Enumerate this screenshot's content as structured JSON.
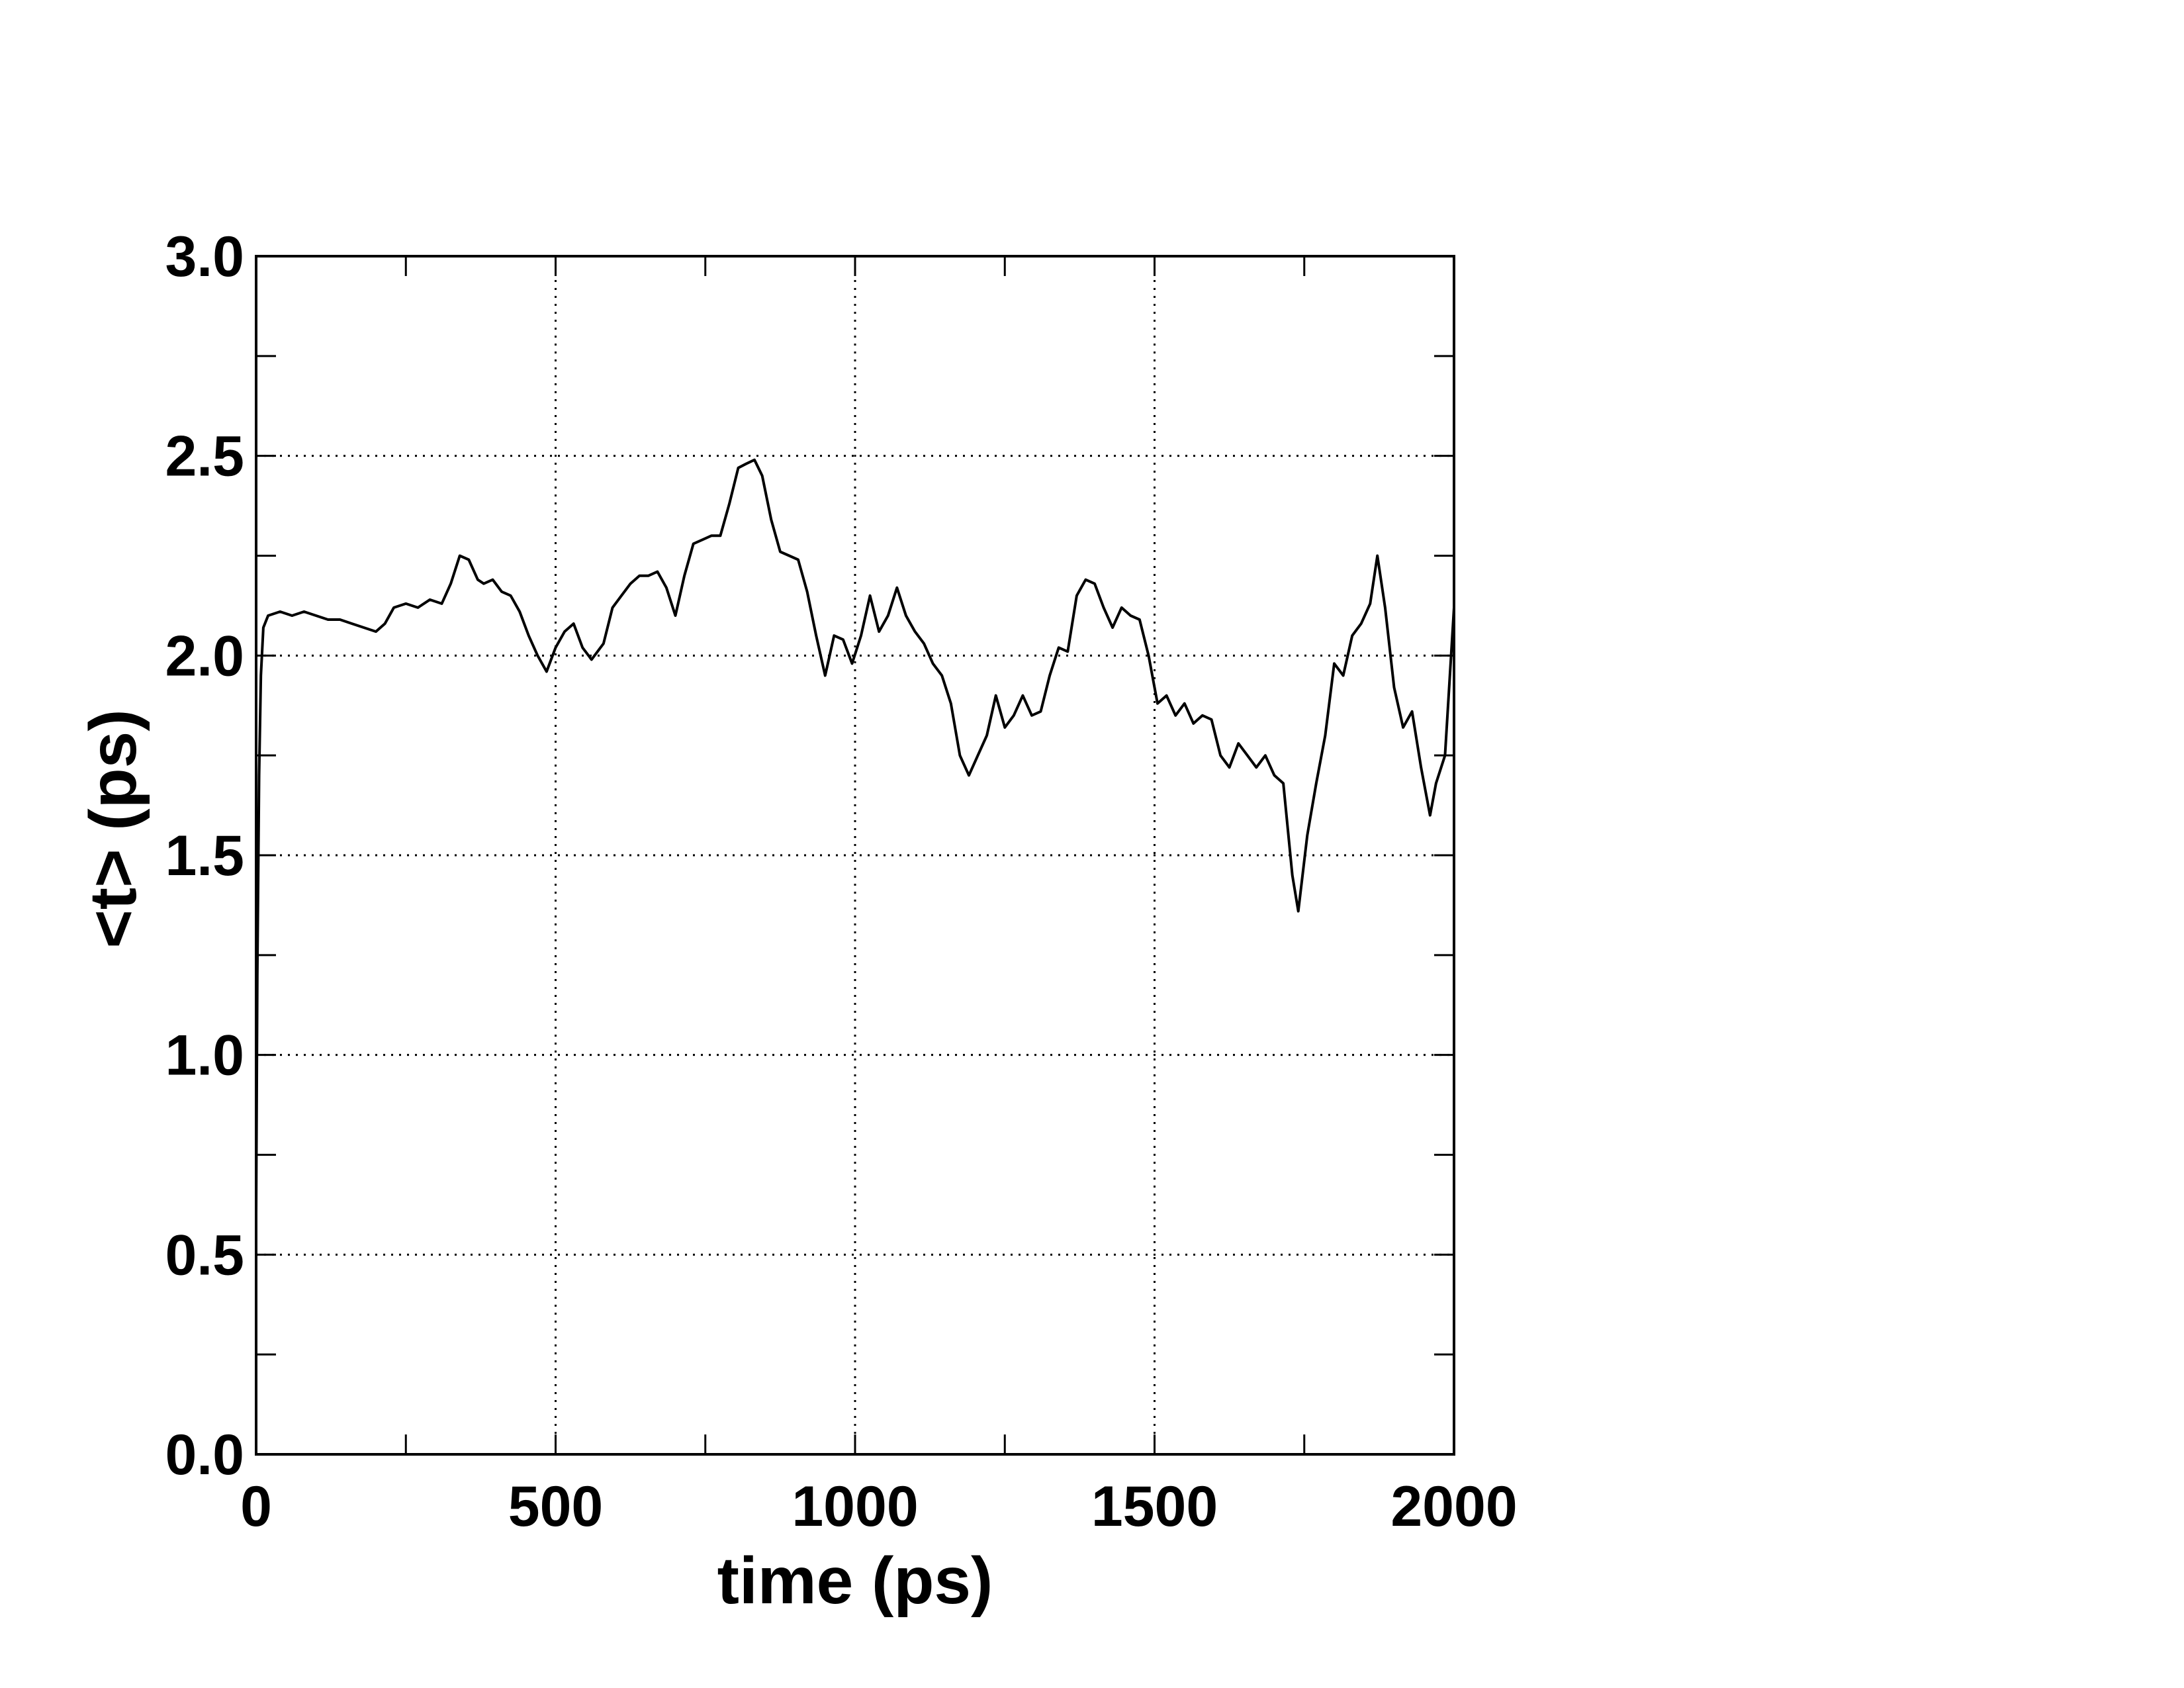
{
  "chart_data": {
    "type": "line",
    "title": "",
    "xlabel": "time (ps)",
    "ylabel": "<t> (ps)",
    "xlim": [
      0,
      2000
    ],
    "ylim": [
      0,
      3.0
    ],
    "x_ticks": [
      0,
      500,
      1000,
      1500,
      2000
    ],
    "x_tick_labels": [
      "0",
      "500",
      "1000",
      "1500",
      "2000"
    ],
    "x_minor_ticks": [
      250,
      750,
      1250,
      1750
    ],
    "y_ticks": [
      0,
      0.5,
      1.0,
      1.5,
      2.0,
      2.5,
      3.0
    ],
    "y_tick_labels": [
      "0.0",
      "0.5",
      "1.0",
      "1.5",
      "2.0",
      "2.5",
      "3.0"
    ],
    "y_minor_ticks": [
      0.25,
      0.75,
      1.25,
      1.75,
      2.25,
      2.75
    ],
    "grid": true,
    "series_color": "#000000",
    "series": [
      {
        "values": [
          [
            0,
            0.6
          ],
          [
            2,
            1.2
          ],
          [
            5,
            1.7
          ],
          [
            8,
            1.95
          ],
          [
            12,
            2.07
          ],
          [
            20,
            2.1
          ],
          [
            40,
            2.11
          ],
          [
            60,
            2.1
          ],
          [
            80,
            2.11
          ],
          [
            100,
            2.1
          ],
          [
            120,
            2.09
          ],
          [
            140,
            2.09
          ],
          [
            160,
            2.08
          ],
          [
            180,
            2.07
          ],
          [
            200,
            2.06
          ],
          [
            215,
            2.08
          ],
          [
            230,
            2.12
          ],
          [
            250,
            2.13
          ],
          [
            270,
            2.12
          ],
          [
            290,
            2.14
          ],
          [
            310,
            2.13
          ],
          [
            325,
            2.18
          ],
          [
            340,
            2.25
          ],
          [
            355,
            2.24
          ],
          [
            370,
            2.19
          ],
          [
            380,
            2.18
          ],
          [
            395,
            2.19
          ],
          [
            410,
            2.16
          ],
          [
            425,
            2.15
          ],
          [
            440,
            2.11
          ],
          [
            455,
            2.05
          ],
          [
            470,
            2.0
          ],
          [
            485,
            1.96
          ],
          [
            500,
            2.02
          ],
          [
            515,
            2.06
          ],
          [
            530,
            2.08
          ],
          [
            545,
            2.02
          ],
          [
            560,
            1.99
          ],
          [
            580,
            2.03
          ],
          [
            595,
            2.12
          ],
          [
            610,
            2.15
          ],
          [
            625,
            2.18
          ],
          [
            640,
            2.2
          ],
          [
            655,
            2.2
          ],
          [
            670,
            2.21
          ],
          [
            685,
            2.17
          ],
          [
            700,
            2.1
          ],
          [
            715,
            2.2
          ],
          [
            730,
            2.28
          ],
          [
            745,
            2.29
          ],
          [
            760,
            2.3
          ],
          [
            775,
            2.3
          ],
          [
            790,
            2.38
          ],
          [
            805,
            2.47
          ],
          [
            818,
            2.48
          ],
          [
            832,
            2.49
          ],
          [
            845,
            2.45
          ],
          [
            860,
            2.34
          ],
          [
            875,
            2.26
          ],
          [
            890,
            2.25
          ],
          [
            905,
            2.24
          ],
          [
            920,
            2.16
          ],
          [
            935,
            2.05
          ],
          [
            950,
            1.95
          ],
          [
            965,
            2.05
          ],
          [
            980,
            2.04
          ],
          [
            995,
            1.98
          ],
          [
            1010,
            2.05
          ],
          [
            1025,
            2.15
          ],
          [
            1040,
            2.06
          ],
          [
            1055,
            2.1
          ],
          [
            1070,
            2.17
          ],
          [
            1085,
            2.1
          ],
          [
            1100,
            2.06
          ],
          [
            1115,
            2.03
          ],
          [
            1130,
            1.98
          ],
          [
            1145,
            1.95
          ],
          [
            1160,
            1.88
          ],
          [
            1175,
            1.75
          ],
          [
            1190,
            1.7
          ],
          [
            1205,
            1.75
          ],
          [
            1220,
            1.8
          ],
          [
            1235,
            1.9
          ],
          [
            1250,
            1.82
          ],
          [
            1265,
            1.85
          ],
          [
            1280,
            1.9
          ],
          [
            1295,
            1.85
          ],
          [
            1310,
            1.86
          ],
          [
            1325,
            1.95
          ],
          [
            1340,
            2.02
          ],
          [
            1355,
            2.01
          ],
          [
            1370,
            2.15
          ],
          [
            1385,
            2.19
          ],
          [
            1400,
            2.18
          ],
          [
            1415,
            2.12
          ],
          [
            1430,
            2.07
          ],
          [
            1445,
            2.12
          ],
          [
            1460,
            2.1
          ],
          [
            1475,
            2.09
          ],
          [
            1490,
            2.0
          ],
          [
            1505,
            1.88
          ],
          [
            1520,
            1.9
          ],
          [
            1535,
            1.85
          ],
          [
            1550,
            1.88
          ],
          [
            1565,
            1.83
          ],
          [
            1580,
            1.85
          ],
          [
            1595,
            1.84
          ],
          [
            1610,
            1.75
          ],
          [
            1625,
            1.72
          ],
          [
            1640,
            1.78
          ],
          [
            1655,
            1.75
          ],
          [
            1670,
            1.72
          ],
          [
            1685,
            1.75
          ],
          [
            1700,
            1.7
          ],
          [
            1715,
            1.68
          ],
          [
            1730,
            1.45
          ],
          [
            1740,
            1.36
          ],
          [
            1755,
            1.55
          ],
          [
            1770,
            1.68
          ],
          [
            1785,
            1.8
          ],
          [
            1800,
            1.98
          ],
          [
            1815,
            1.95
          ],
          [
            1830,
            2.05
          ],
          [
            1845,
            2.08
          ],
          [
            1860,
            2.13
          ],
          [
            1872,
            2.25
          ],
          [
            1885,
            2.12
          ],
          [
            1900,
            1.92
          ],
          [
            1915,
            1.82
          ],
          [
            1930,
            1.86
          ],
          [
            1945,
            1.72
          ],
          [
            1960,
            1.6
          ],
          [
            1970,
            1.68
          ],
          [
            1985,
            1.75
          ],
          [
            2000,
            2.12
          ]
        ]
      }
    ]
  }
}
